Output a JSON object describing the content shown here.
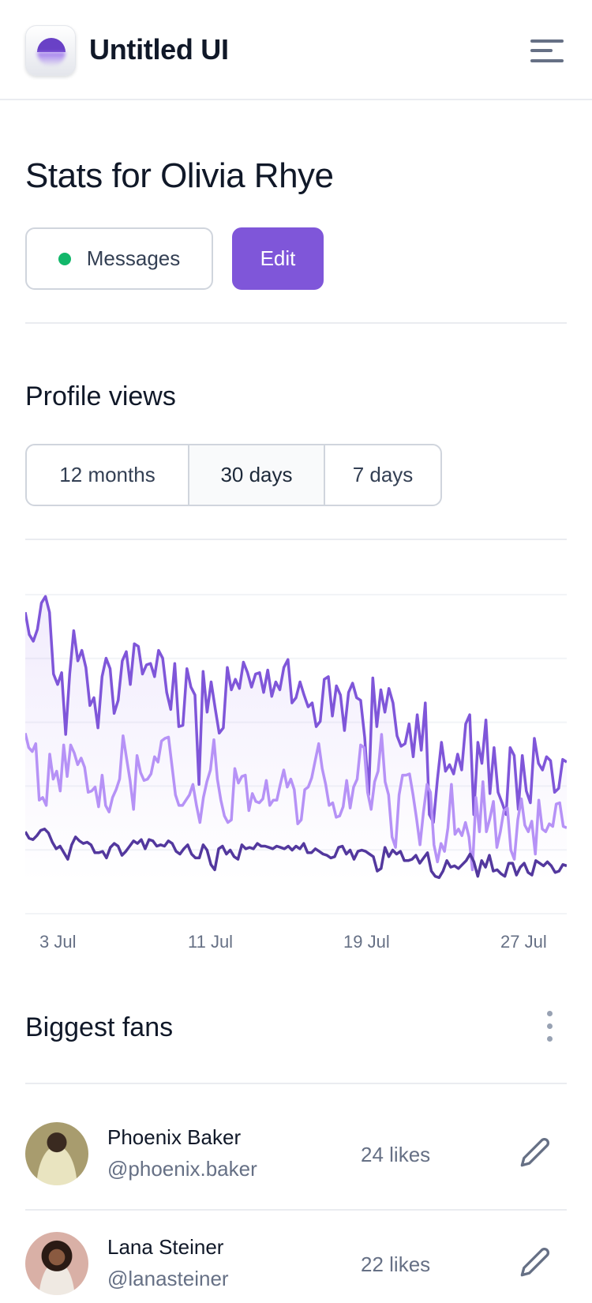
{
  "header": {
    "brand": "Untitled UI",
    "logo_icon": "half-circle-logo",
    "menu_icon": "hamburger-menu-icon"
  },
  "page": {
    "title": "Stats for Olivia Rhye",
    "messages_label": "Messages",
    "edit_label": "Edit",
    "status_color": "#12B76A",
    "accent": "#7F56D9"
  },
  "profile_views": {
    "title": "Profile views",
    "ranges": [
      "12 months",
      "30 days",
      "7 days"
    ],
    "selected": "30 days"
  },
  "chart_data": {
    "type": "line",
    "title": "Profile views",
    "xlabel": "",
    "ylabel": "",
    "x_ticks": [
      "3 Jul",
      "11 Jul",
      "19 Jul",
      "27 Jul"
    ],
    "ylim": [
      0,
      1214
    ],
    "grid": true,
    "series": [
      {
        "name": "series-1",
        "color": "#7F56D9",
        "area": true,
        "values": [
          1147,
          1062,
          1037,
          1082,
          1182,
          1207,
          1147,
          912,
          872,
          917,
          682,
          912,
          1077,
          962,
          1002,
          937,
          792,
          822,
          707,
          902,
          972,
          932,
          762,
          812,
          962,
          997,
          872,
          1027,
          1017,
          912,
          947,
          952,
          902,
          1002,
          972,
          842,
          777,
          952,
          712,
          717,
          932,
          862,
          832,
          492,
          922,
          767,
          882,
          782,
          687,
          707,
          937,
          852,
          892,
          857,
          957,
          917,
          862,
          912,
          917,
          842,
          927,
          827,
          882,
          852,
          937,
          967,
          802,
          822,
          882,
          832,
          787,
          802,
          712,
          732,
          892,
          902,
          752,
          867,
          832,
          697,
          842,
          877,
          822,
          812,
          672,
          452,
          897,
          712,
          852,
          767,
          857,
          802,
          677,
          637,
          647,
          722,
          597,
          757,
          622,
          802,
          377,
          347,
          512,
          652,
          542,
          567,
          532,
          607,
          547,
          722,
          757,
          377,
          652,
          572,
          737,
          457,
          632,
          462,
          422,
          377,
          632,
          602,
          397,
          602,
          467,
          422,
          667,
          572,
          547,
          597,
          582,
          462,
          477,
          587,
          577
        ]
      },
      {
        "name": "series-2",
        "color": "#B692F6",
        "area": false,
        "values": [
          687,
          632,
          617,
          647,
          432,
          442,
          412,
          607,
          512,
          542,
          467,
          642,
          522,
          642,
          612,
          567,
          592,
          557,
          462,
          467,
          482,
          407,
          527,
          412,
          387,
          442,
          472,
          512,
          677,
          592,
          507,
          397,
          602,
          537,
          507,
          512,
          532,
          597,
          577,
          657,
          667,
          672,
          562,
          452,
          412,
          412,
          432,
          452,
          492,
          412,
          347,
          442,
          502,
          547,
          662,
          512,
          432,
          372,
          347,
          357,
          552,
          497,
          522,
          527,
          392,
          457,
          427,
          422,
          437,
          507,
          412,
          432,
          432,
          492,
          547,
          482,
          512,
          472,
          342,
          357,
          472,
          482,
          517,
          582,
          647,
          552,
          492,
          412,
          422,
          367,
          372,
          407,
          507,
          402,
          482,
          512,
          642,
          632,
          462,
          397,
          502,
          542,
          682,
          502,
          452,
          292,
          252,
          452,
          527,
          527,
          532,
          452,
          362,
          262,
          387,
          492,
          462,
          262,
          197,
          267,
          237,
          327,
          492,
          302,
          322,
          297,
          347,
          292,
          167,
          442,
          312,
          502,
          312,
          362,
          427,
          252,
          312,
          392,
          402,
          242,
          207,
          357,
          437,
          337,
          312,
          352,
          227,
          432,
          322,
          312,
          342,
          332,
          417,
          422,
          332,
          327
        ]
      },
      {
        "name": "series-3",
        "color": "#53389E",
        "area": false,
        "values": [
          312,
          287,
          282,
          297,
          317,
          322,
          307,
          272,
          247,
          257,
          232,
          207,
          262,
          292,
          277,
          267,
          272,
          262,
          232,
          232,
          237,
          212,
          252,
          267,
          257,
          222,
          237,
          257,
          277,
          267,
          282,
          247,
          282,
          277,
          257,
          262,
          257,
          277,
          267,
          237,
          227,
          247,
          262,
          227,
          212,
          212,
          262,
          242,
          187,
          167,
          247,
          257,
          227,
          242,
          217,
          207,
          262,
          247,
          252,
          247,
          267,
          257,
          257,
          252,
          247,
          257,
          252,
          247,
          257,
          242,
          257,
          247,
          267,
          232,
          232,
          247,
          237,
          227,
          222,
          212,
          217,
          252,
          257,
          227,
          242,
          207,
          237,
          242,
          237,
          227,
          217,
          162,
          172,
          252,
          217,
          242,
          227,
          237,
          202,
          202,
          207,
          222,
          192,
          212,
          232,
          162,
          142,
          137,
          162,
          202,
          177,
          182,
          172,
          187,
          202,
          227,
          197,
          142,
          202,
          177,
          222,
          162,
          167,
          152,
          142,
          192,
          192,
          147,
          177,
          192,
          157,
          147,
          202,
          192,
          182,
          197,
          182,
          157,
          162,
          187,
          182
        ]
      }
    ]
  },
  "fans": {
    "title": "Biggest fans",
    "items": [
      {
        "name": "Phoenix Baker",
        "handle": "@phoenix.baker",
        "likes": "24 likes",
        "avatar_bg": "#A89C6E"
      },
      {
        "name": "Lana Steiner",
        "handle": "@lanasteiner",
        "likes": "22 likes",
        "avatar_bg": "#D9B0A6"
      }
    ]
  }
}
